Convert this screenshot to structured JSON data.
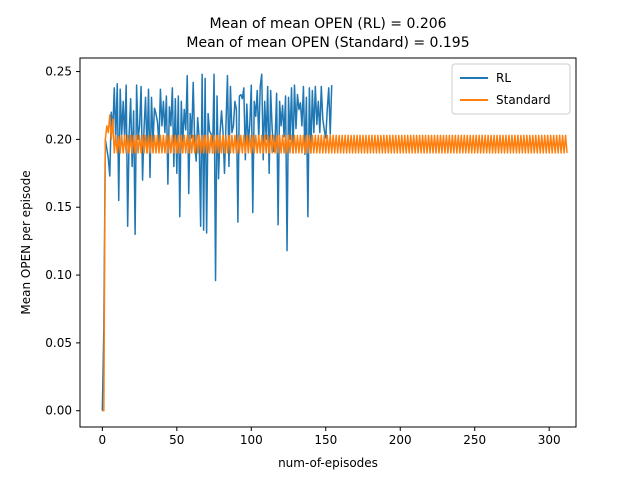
{
  "chart_data": {
    "type": "line",
    "title_lines": [
      "Mean of mean OPEN (RL) = 0.206",
      "Mean of mean OPEN (Standard) = 0.195"
    ],
    "xlabel": "num-of-episodes",
    "ylabel": "Mean OPEN per episode",
    "xlim": [
      -15,
      318
    ],
    "ylim": [
      -0.012,
      0.26
    ],
    "xticks": [
      0,
      50,
      100,
      150,
      200,
      250,
      300
    ],
    "yticks": [
      0.0,
      0.05,
      0.1,
      0.15,
      0.2,
      0.25
    ],
    "ytick_labels": [
      "0.00",
      "0.05",
      "0.10",
      "0.15",
      "0.20",
      "0.25"
    ],
    "grid": false,
    "legend_position": "top-right",
    "series": [
      {
        "name": "RL",
        "color": "#1f77b4",
        "x_start": 0,
        "values": [
          0.0,
          0.06,
          0.2,
          0.193,
          0.186,
          0.173,
          0.22,
          0.206,
          0.238,
          0.2,
          0.241,
          0.155,
          0.237,
          0.203,
          0.228,
          0.2,
          0.24,
          0.136,
          0.204,
          0.23,
          0.18,
          0.221,
          0.13,
          0.24,
          0.2,
          0.21,
          0.239,
          0.17,
          0.208,
          0.231,
          0.19,
          0.237,
          0.172,
          0.231,
          0.198,
          0.223,
          0.219,
          0.213,
          0.197,
          0.237,
          0.21,
          0.228,
          0.205,
          0.232,
          0.167,
          0.224,
          0.21,
          0.238,
          0.18,
          0.23,
          0.175,
          0.232,
          0.143,
          0.228,
          0.198,
          0.222,
          0.207,
          0.247,
          0.16,
          0.219,
          0.201,
          0.242,
          0.198,
          0.184,
          0.216,
          0.201,
          0.136,
          0.248,
          0.133,
          0.245,
          0.131,
          0.219,
          0.206,
          0.204,
          0.19,
          0.248,
          0.096,
          0.232,
          0.171,
          0.204,
          0.221,
          0.206,
          0.175,
          0.211,
          0.247,
          0.18,
          0.239,
          0.205,
          0.21,
          0.228,
          0.222,
          0.139,
          0.232,
          0.233,
          0.23,
          0.238,
          0.185,
          0.226,
          0.197,
          0.211,
          0.24,
          0.146,
          0.228,
          0.217,
          0.236,
          0.2,
          0.239,
          0.248,
          0.185,
          0.228,
          0.2,
          0.239,
          0.175,
          0.236,
          0.208,
          0.191,
          0.2,
          0.234,
          0.137,
          0.228,
          0.21,
          0.225,
          0.202,
          0.232,
          0.118,
          0.231,
          0.2,
          0.238,
          0.19,
          0.24,
          0.208,
          0.233,
          0.222,
          0.227,
          0.21,
          0.239,
          0.189,
          0.231,
          0.143,
          0.238,
          0.19,
          0.236,
          0.205,
          0.239,
          0.211,
          0.228,
          0.205,
          0.239,
          0.215,
          0.207,
          0.201,
          0.222,
          0.238,
          0.204,
          0.24
        ]
      },
      {
        "name": "Standard",
        "color": "#ff7f0e",
        "x_start": 0,
        "values": [
          0.0,
          0.0,
          0.2,
          0.21,
          0.205,
          0.218,
          0.2,
          0.215,
          0.19,
          0.203,
          0.19,
          0.202,
          0.19,
          0.203,
          0.19,
          0.203,
          0.19,
          0.203,
          0.19,
          0.203,
          0.19,
          0.203,
          0.19,
          0.203,
          0.19,
          0.203,
          0.19,
          0.203,
          0.19,
          0.203,
          0.19,
          0.203,
          0.19,
          0.203,
          0.19,
          0.203,
          0.19,
          0.203,
          0.19,
          0.203,
          0.19,
          0.203,
          0.19,
          0.203,
          0.19,
          0.203,
          0.19,
          0.203,
          0.19,
          0.203,
          0.19,
          0.203,
          0.19,
          0.203,
          0.19,
          0.203,
          0.19,
          0.203,
          0.19,
          0.203,
          0.19,
          0.203,
          0.19,
          0.203,
          0.19,
          0.203,
          0.19,
          0.203,
          0.19,
          0.203,
          0.19,
          0.203,
          0.19,
          0.203,
          0.19,
          0.203,
          0.19,
          0.203,
          0.19,
          0.203,
          0.19,
          0.203,
          0.19,
          0.203,
          0.19,
          0.203,
          0.19,
          0.203,
          0.19,
          0.203,
          0.19,
          0.203,
          0.19,
          0.203,
          0.19,
          0.203,
          0.19,
          0.203,
          0.19,
          0.203,
          0.19,
          0.203,
          0.19,
          0.203,
          0.19,
          0.203,
          0.19,
          0.203,
          0.19,
          0.203,
          0.19,
          0.203,
          0.19,
          0.203,
          0.19,
          0.203,
          0.19,
          0.203,
          0.19,
          0.203,
          0.19,
          0.203,
          0.19,
          0.203,
          0.19,
          0.203,
          0.19,
          0.203,
          0.19,
          0.203,
          0.19,
          0.203,
          0.19,
          0.203,
          0.19,
          0.203,
          0.19,
          0.203,
          0.19,
          0.203,
          0.19,
          0.203,
          0.19,
          0.203,
          0.19,
          0.203,
          0.19,
          0.203,
          0.19,
          0.203,
          0.19,
          0.203,
          0.19,
          0.203,
          0.19,
          0.203,
          0.19,
          0.203,
          0.19,
          0.203,
          0.19,
          0.203,
          0.19,
          0.203,
          0.19,
          0.203,
          0.19,
          0.203,
          0.19,
          0.203,
          0.19,
          0.203,
          0.19,
          0.203,
          0.19,
          0.203,
          0.19,
          0.203,
          0.19,
          0.203,
          0.19,
          0.203,
          0.19,
          0.203,
          0.19,
          0.203,
          0.19,
          0.203,
          0.19,
          0.203,
          0.19,
          0.203,
          0.19,
          0.203,
          0.19,
          0.203,
          0.19,
          0.203,
          0.19,
          0.203,
          0.19,
          0.203,
          0.19,
          0.203,
          0.19,
          0.203,
          0.19,
          0.203,
          0.19,
          0.203,
          0.19,
          0.203,
          0.19,
          0.203,
          0.19,
          0.203,
          0.19,
          0.203,
          0.19,
          0.203,
          0.19,
          0.203,
          0.19,
          0.203,
          0.19,
          0.203,
          0.19,
          0.203,
          0.19,
          0.203,
          0.19,
          0.203,
          0.19,
          0.203,
          0.19,
          0.203,
          0.19,
          0.203,
          0.19,
          0.203,
          0.19,
          0.203,
          0.19,
          0.203,
          0.19,
          0.203,
          0.19,
          0.203,
          0.19,
          0.203,
          0.19,
          0.203,
          0.19,
          0.203,
          0.19,
          0.203,
          0.19,
          0.203,
          0.19,
          0.203,
          0.19,
          0.203,
          0.19,
          0.203,
          0.19,
          0.203,
          0.19,
          0.203,
          0.19,
          0.203,
          0.19,
          0.203,
          0.19,
          0.203,
          0.19,
          0.203,
          0.19,
          0.203,
          0.19,
          0.203,
          0.19,
          0.203,
          0.19,
          0.203,
          0.19,
          0.203,
          0.19,
          0.203,
          0.19,
          0.203,
          0.19,
          0.203,
          0.19,
          0.203,
          0.19,
          0.203,
          0.19,
          0.203,
          0.19,
          0.203,
          0.19,
          0.203,
          0.19,
          0.203,
          0.19,
          0.203,
          0.19,
          0.203,
          0.19,
          0.203,
          0.19,
          0.203,
          0.19
        ]
      }
    ]
  }
}
